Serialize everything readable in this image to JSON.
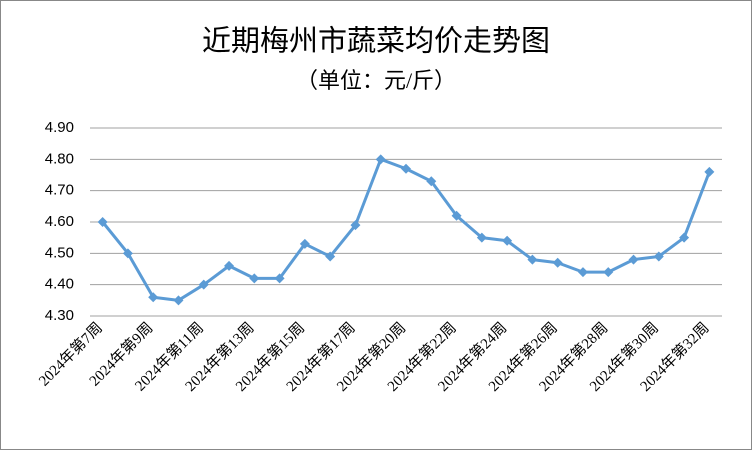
{
  "chart_data": {
    "type": "line",
    "title": "近期梅州市蔬菜均价走势图",
    "subtitle": "（单位：元/斤）",
    "categories": [
      "2024年第7周",
      null,
      "2024年第9周",
      null,
      "2024年第11周",
      null,
      "2024年第13周",
      null,
      "2024年第15周",
      null,
      "2024年第17周",
      null,
      "2024年第20周",
      null,
      "2024年第22周",
      null,
      "2024年第24周",
      null,
      "2024年第26周",
      null,
      "2024年第28周",
      null,
      "2024年第30周",
      null,
      "2024年第32周"
    ],
    "series": [
      {
        "name": "均价",
        "color": "#5b9bd5",
        "values": [
          4.6,
          4.5,
          4.36,
          4.35,
          4.4,
          4.46,
          4.42,
          4.42,
          4.53,
          4.49,
          4.59,
          4.8,
          4.77,
          4.73,
          4.62,
          4.55,
          4.54,
          4.48,
          4.47,
          4.44,
          4.44,
          4.48,
          4.49,
          4.55,
          4.76
        ]
      }
    ],
    "ylim": [
      4.3,
      4.9
    ],
    "yticks": [
      {
        "value": 4.3,
        "label": "4.30"
      },
      {
        "value": 4.4,
        "label": "4.40"
      },
      {
        "value": 4.5,
        "label": "4.50"
      },
      {
        "value": 4.6,
        "label": "4.60"
      },
      {
        "value": 4.7,
        "label": "4.70"
      },
      {
        "value": 4.8,
        "label": "4.80"
      },
      {
        "value": 4.9,
        "label": "4.90"
      }
    ],
    "grid": true,
    "legend": false
  }
}
